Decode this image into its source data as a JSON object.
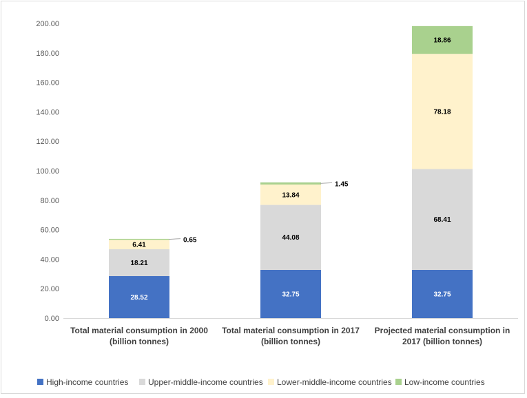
{
  "chart_data": {
    "type": "bar",
    "stacked": true,
    "categories": [
      [
        "Total material consumption in 2000",
        "(billion tonnes)"
      ],
      [
        "Total material consumption in 2017",
        "(billion tonnes)"
      ],
      [
        "Projected material consumption in",
        "2017 (billion tonnes)"
      ]
    ],
    "series": [
      {
        "name": "High-income countries",
        "color": "#4472C4",
        "values": [
          28.52,
          32.75,
          32.75
        ],
        "labels": [
          "28.52",
          "32.75",
          "32.75"
        ],
        "label_color": "#ffffff"
      },
      {
        "name": "Upper-middle-income countries",
        "color": "#D9D9D9",
        "values": [
          18.21,
          44.08,
          68.41
        ],
        "labels": [
          "18.21",
          "44.08",
          "68.41"
        ],
        "label_color": "#000000"
      },
      {
        "name": "Lower-middle-income countries",
        "color": "#FFF2CC",
        "values": [
          6.41,
          13.84,
          78.18
        ],
        "labels": [
          "6.41",
          "13.84",
          "78.18"
        ],
        "label_color": "#000000"
      },
      {
        "name": "Low-income countries",
        "color": "#A9D18E",
        "values": [
          0.65,
          1.45,
          18.86
        ],
        "labels": [
          "0.65",
          "1.45",
          "18.86"
        ],
        "label_color": "#000000"
      }
    ],
    "ylim": [
      0,
      200
    ],
    "yticks": [
      "0.00",
      "20.00",
      "40.00",
      "60.00",
      "80.00",
      "100.00",
      "120.00",
      "140.00",
      "160.00",
      "180.00",
      "200.00"
    ],
    "gridlines": false,
    "legend_position": "bottom"
  }
}
